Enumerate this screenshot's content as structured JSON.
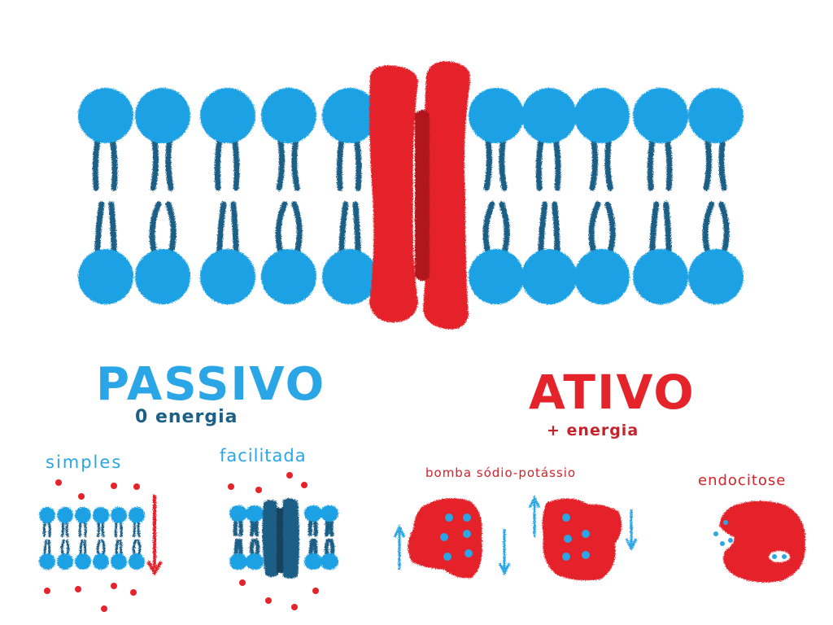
{
  "labels": {
    "passive_title": "PASSIVO",
    "passive_energy": "0 energia",
    "active_title": "ATIVO",
    "active_energy": "+ energia",
    "simple": "simples",
    "facilitated": "facilitada",
    "pump": "bomba sódio-potássio",
    "endocytosis": "endocitose"
  },
  "colors": {
    "phospholipid_head": "#1fa2e4",
    "phospholipid_tail": "#1e5f86",
    "protein": "#e5232b",
    "protein_dark": "#b0141c",
    "passive_text": "#2aa6e6",
    "passive_sub": "#1e5f86",
    "active_text": "#e5232b",
    "molecule": "#e5232b",
    "ion": "#2aa6e6"
  }
}
